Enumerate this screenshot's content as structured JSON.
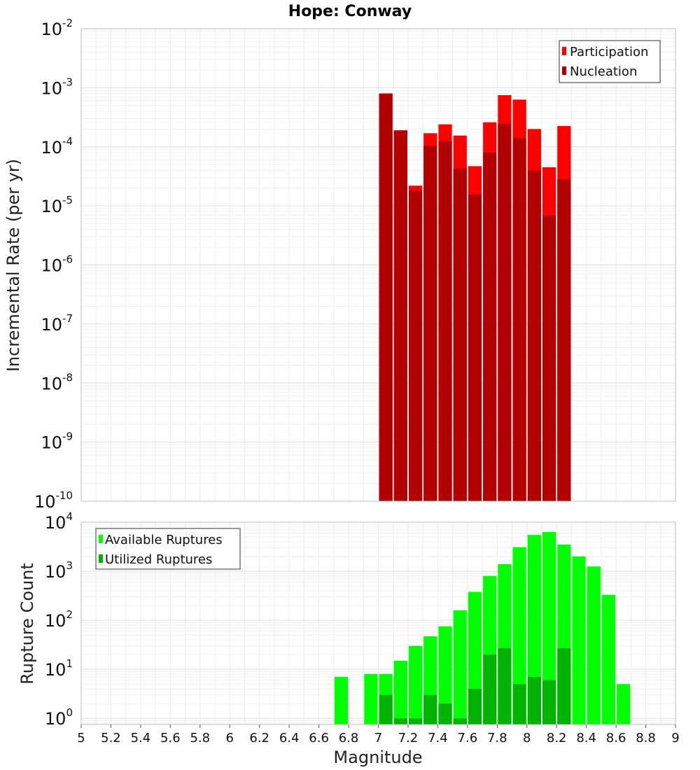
{
  "chart_data": [
    {
      "type": "bar",
      "title": "Hope: Conway",
      "xlabel": "",
      "ylabel": "Incremental Rate (per yr)",
      "xlim": [
        5,
        9
      ],
      "ylim": [
        1e-10,
        0.01
      ],
      "yscale": "log",
      "y_tick_exponents": [
        -10,
        -9,
        -8,
        -7,
        -6,
        -5,
        -4,
        -3,
        -2
      ],
      "y_tick_base": "10",
      "grid": true,
      "legend": "top-right",
      "bin_width": 0.1,
      "x": [
        7.05,
        7.15,
        7.25,
        7.35,
        7.45,
        7.55,
        7.65,
        7.75,
        7.85,
        7.95,
        8.05,
        8.15,
        8.25
      ],
      "series": [
        {
          "name": "Participation",
          "color": "#ff0000",
          "values": [
            0.0008,
            0.00019,
            2.2e-05,
            0.00017,
            0.00024,
            0.000155,
            4.7e-05,
            0.00026,
            0.00075,
            0.00063,
            0.0002,
            4.5e-05,
            0.000225
          ]
        },
        {
          "name": "Nucleation",
          "color": "#b30000",
          "values": [
            0.0008,
            0.00019,
            1.8e-05,
            0.000105,
            0.000125,
            4.3e-05,
            1.55e-05,
            8e-05,
            0.000245,
            0.00014,
            4e-05,
            6.8e-06,
            2.8e-05
          ]
        }
      ]
    },
    {
      "type": "bar",
      "title": "",
      "xlabel": "Magnitude",
      "ylabel": "Rupture Count",
      "xlim": [
        5,
        9
      ],
      "ylim": [
        0.75,
        10000.0
      ],
      "yscale": "log",
      "y_tick_exponents": [
        0,
        1,
        2,
        3,
        4
      ],
      "y_tick_base": "10",
      "x_ticks": [
        "5",
        "5.2",
        "5.4",
        "5.6",
        "5.8",
        "6",
        "6.2",
        "6.4",
        "6.6",
        "6.8",
        "7",
        "7.2",
        "7.4",
        "7.6",
        "7.8",
        "8",
        "8.2",
        "8.4",
        "8.6",
        "8.8",
        "9"
      ],
      "grid": true,
      "legend": "top-left",
      "bin_width": 0.1,
      "x": [
        6.75,
        6.95,
        7.05,
        7.15,
        7.25,
        7.35,
        7.45,
        7.55,
        7.65,
        7.75,
        7.85,
        7.95,
        8.05,
        8.15,
        8.25,
        8.35,
        8.45,
        8.55,
        8.65
      ],
      "series": [
        {
          "name": "Available Ruptures",
          "color": "#00ff00",
          "values": [
            7,
            8,
            8,
            15,
            30,
            47,
            75,
            160,
            380,
            800,
            1400,
            3100,
            5500,
            6300,
            3500,
            2000,
            1250,
            330,
            5
          ]
        },
        {
          "name": "Utilized Ruptures",
          "color": "#00b300",
          "values": [
            null,
            null,
            3,
            1,
            1,
            3,
            2,
            1,
            4,
            20,
            27,
            5,
            7,
            6,
            27,
            null,
            null,
            null,
            null
          ]
        }
      ]
    }
  ]
}
